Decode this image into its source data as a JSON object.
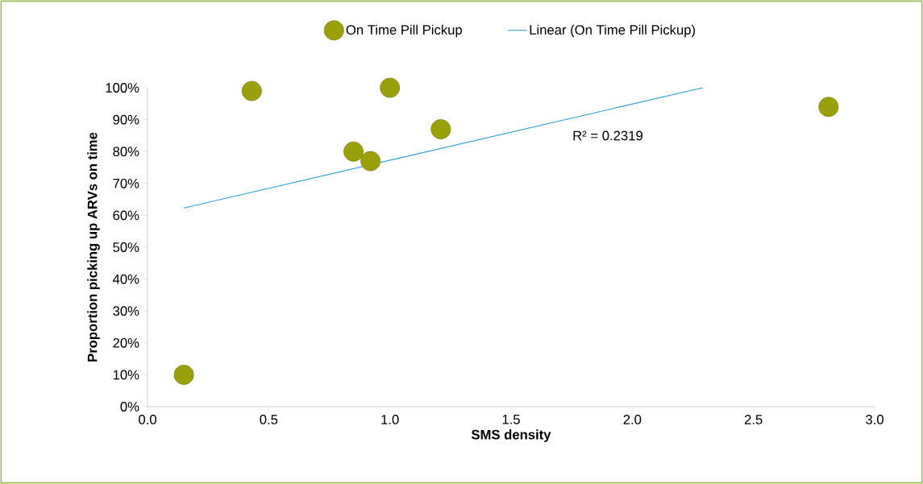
{
  "chart_data": {
    "type": "scatter",
    "xlabel": "SMS density",
    "ylabel": "Proportion picking up ARVs on time",
    "series": [
      {
        "name": "On Time Pill Pickup",
        "color": "#9aa00a",
        "marker": "circle",
        "x": [
          0.15,
          0.43,
          0.85,
          0.92,
          1.0,
          1.21,
          2.81
        ],
        "values": [
          10,
          99,
          80,
          77,
          100,
          87,
          94
        ]
      },
      {
        "name": "Linear (On Time Pill Pickup)",
        "type": "line",
        "color": "#2b9fd0",
        "marker": "none",
        "line_style": "solid",
        "x": [
          0.15,
          2.29
        ],
        "values": [
          62.3,
          100
        ]
      }
    ],
    "annotations": [
      "R² = 0.2319"
    ],
    "xlim": [
      0,
      3
    ],
    "ylim": [
      0,
      100
    ],
    "xticks": [
      {
        "value": 0,
        "label": "0.0"
      },
      {
        "value": 0.5,
        "label": "0.5"
      },
      {
        "value": 1,
        "label": "1.0"
      },
      {
        "value": 1.5,
        "label": "1.5"
      },
      {
        "value": 2,
        "label": "2.0"
      },
      {
        "value": 2.5,
        "label": "2.5"
      },
      {
        "value": 3,
        "label": "3.0"
      }
    ],
    "yticks": [
      {
        "value": 0,
        "label": "0%"
      },
      {
        "value": 10,
        "label": "10%"
      },
      {
        "value": 20,
        "label": "20%"
      },
      {
        "value": 30,
        "label": "30%"
      },
      {
        "value": 40,
        "label": "40%"
      },
      {
        "value": 50,
        "label": "50%"
      },
      {
        "value": 60,
        "label": "60%"
      },
      {
        "value": 70,
        "label": "70%"
      },
      {
        "value": 80,
        "label": "80%"
      },
      {
        "value": 90,
        "label": "90%"
      },
      {
        "value": 100,
        "label": "100%"
      }
    ],
    "grid": false,
    "legend": "top"
  }
}
